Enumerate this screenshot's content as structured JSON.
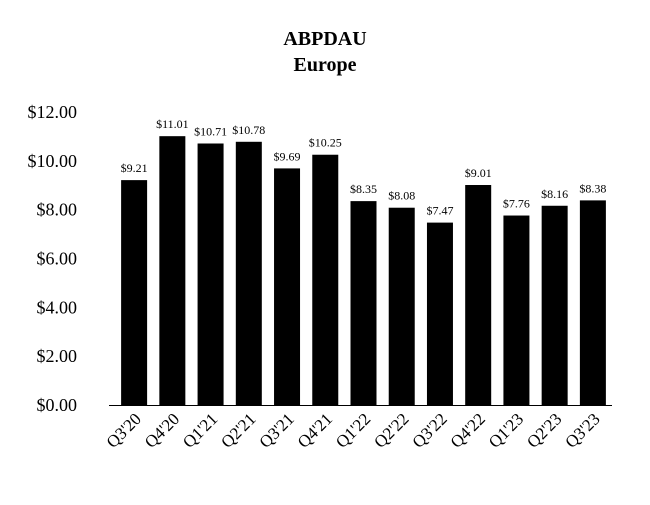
{
  "chart_data": {
    "type": "bar",
    "title": "ABPDAU",
    "subtitle": "Europe",
    "xlabel": "",
    "ylabel": "",
    "ylim": [
      0,
      12
    ],
    "yticks": [
      0,
      2,
      4,
      6,
      8,
      10,
      12
    ],
    "ytick_labels": [
      "$0.00",
      "$2.00",
      "$4.00",
      "$6.00",
      "$8.00",
      "$10.00",
      "$12.00"
    ],
    "categories": [
      "Q3'20",
      "Q4'20",
      "Q1'21",
      "Q2'21",
      "Q3'21",
      "Q4'21",
      "Q1'22",
      "Q2'22",
      "Q3'22",
      "Q4'22",
      "Q1'23",
      "Q2'23",
      "Q3'23"
    ],
    "values": [
      9.21,
      11.01,
      10.71,
      10.78,
      9.69,
      10.25,
      8.35,
      8.08,
      7.47,
      9.01,
      7.76,
      8.16,
      8.38
    ],
    "data_labels": [
      "$9.21",
      "$11.01",
      "$10.71",
      "$10.78",
      "$9.69",
      "$10.25",
      "$8.35",
      "$8.08",
      "$7.47",
      "$9.01",
      "$7.76",
      "$8.16",
      "$8.38"
    ],
    "grid": false,
    "legend": "none",
    "colors": {
      "bar": "#000000",
      "axis": "#000000",
      "text": "#000000",
      "background": "#ffffff"
    }
  }
}
